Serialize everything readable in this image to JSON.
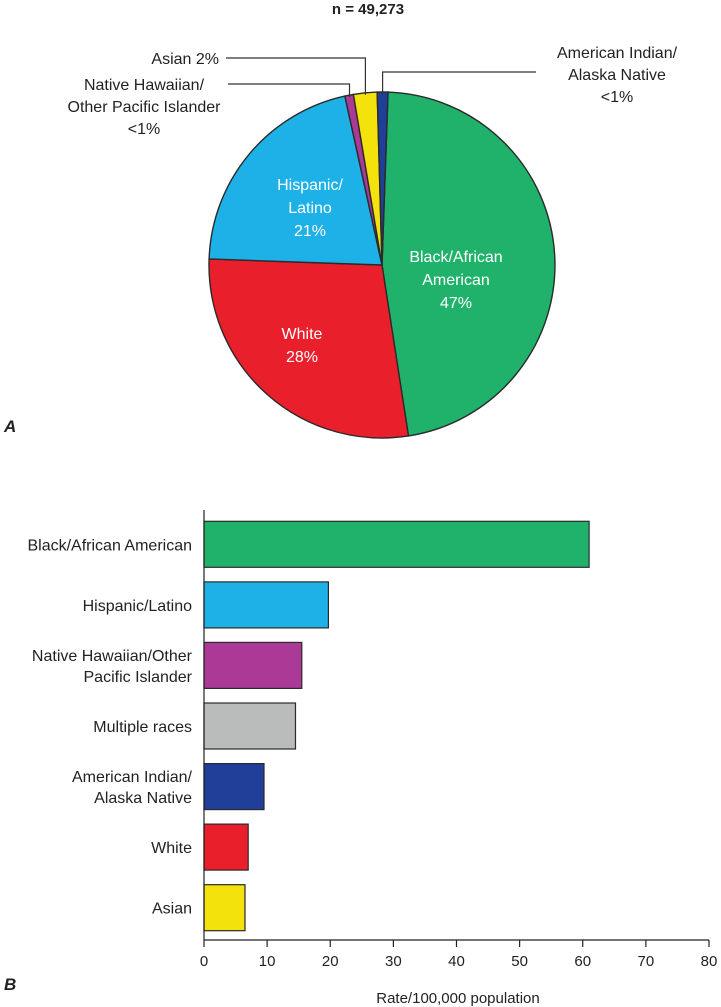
{
  "panel_a_label": "A",
  "panel_b_label": "B",
  "chart_data": [
    {
      "type": "pie",
      "title": "n = 49,273",
      "slices": [
        {
          "label": "Black/African American",
          "pct_label": "47%",
          "value": 47,
          "color": "#20b26b"
        },
        {
          "label": "White",
          "pct_label": "28%",
          "value": 28,
          "color": "#ea1f2c"
        },
        {
          "label": "Hispanic/Latino",
          "pct_label": "21%",
          "value": 21,
          "color": "#1eb1e7"
        },
        {
          "label": "Native Hawaiian/Other Pacific Islander",
          "pct_label": "<1%",
          "value": 0.8,
          "color": "#ab3a97"
        },
        {
          "label": "Asian",
          "pct_label": "2%",
          "value": 2.2,
          "color": "#f4e20c"
        },
        {
          "label": "American Indian/Alaska Native",
          "pct_label": "<1%",
          "value": 1,
          "color": "#1f3f99"
        }
      ],
      "inside_labels": [
        {
          "lines": [
            "Black/African",
            "American",
            "47%"
          ]
        },
        {
          "lines": [
            "White",
            "28%"
          ]
        },
        {
          "lines": [
            "Hispanic/",
            "Latino",
            "21%"
          ]
        }
      ],
      "callouts": [
        {
          "lines": [
            "Asian 2%"
          ]
        },
        {
          "lines": [
            "Native Hawaiian/",
            "Other Pacific Islander",
            "<1%"
          ]
        },
        {
          "lines": [
            "American Indian/",
            "Alaska Native",
            "<1%"
          ]
        }
      ]
    },
    {
      "type": "bar",
      "orientation": "horizontal",
      "categories": [
        "Black/African American",
        "Hispanic/Latino",
        "Native Hawaiian/Other Pacific Islander",
        "Multiple races",
        "American Indian/ Alaska Native",
        "White",
        "Asian"
      ],
      "category_lines": [
        [
          "Black/African American"
        ],
        [
          "Hispanic/Latino"
        ],
        [
          "Native Hawaiian/Other",
          "Pacific Islander"
        ],
        [
          "Multiple races"
        ],
        [
          "American Indian/",
          "Alaska Native"
        ],
        [
          "White"
        ],
        [
          "Asian"
        ]
      ],
      "values": [
        61,
        19.7,
        15.5,
        14.5,
        9.5,
        7,
        6.5
      ],
      "colors": [
        "#20b26b",
        "#1eb1e7",
        "#ab3a97",
        "#b9bcba",
        "#1f3f99",
        "#ea1f2c",
        "#f4e20c"
      ],
      "xlabel": "Rate/100,000 population",
      "xlim": [
        0,
        80
      ],
      "xticks": [
        "0",
        "10",
        "20",
        "30",
        "40",
        "50",
        "60",
        "70",
        "80"
      ],
      "grid": false
    }
  ]
}
